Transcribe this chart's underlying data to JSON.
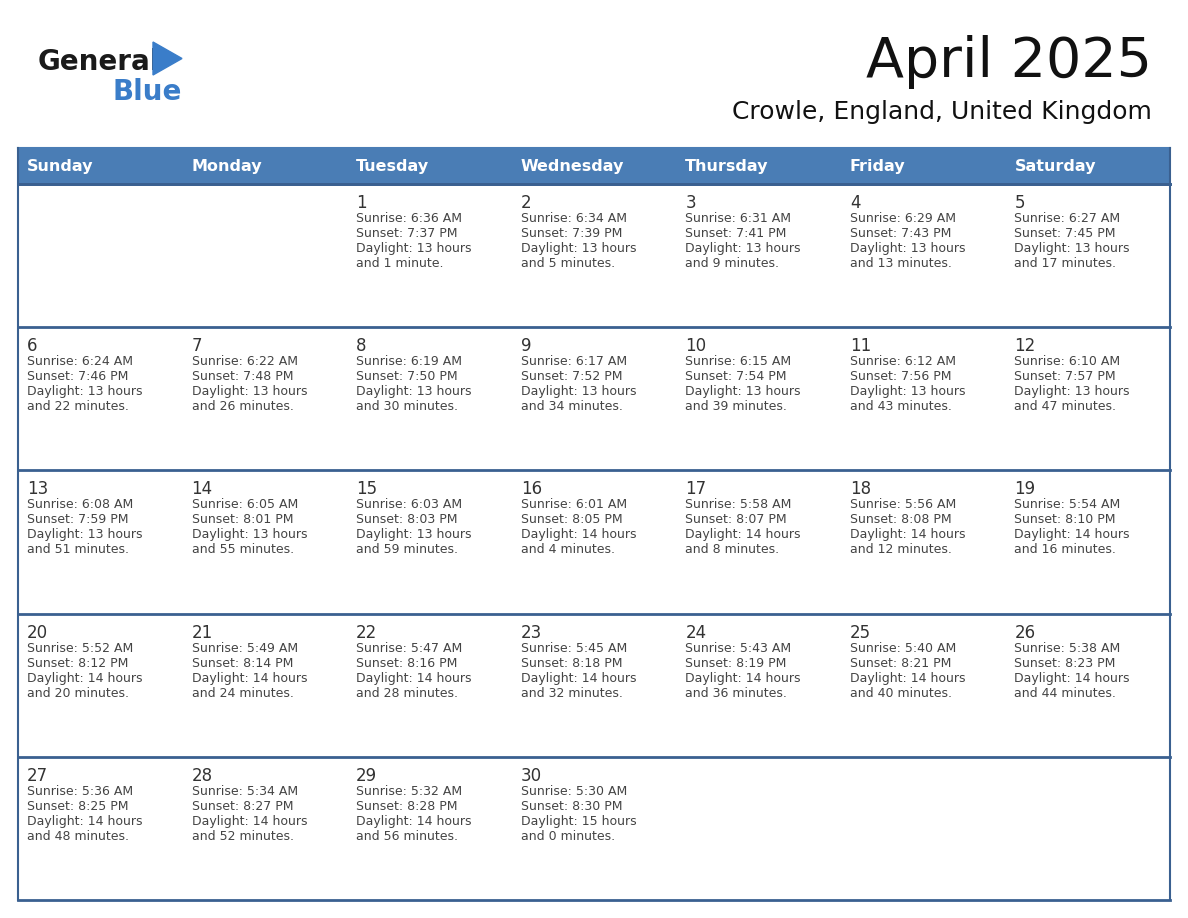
{
  "title": "April 2025",
  "subtitle": "Crowle, England, United Kingdom",
  "header_bg_color": "#4A7DB5",
  "header_text_color": "#FFFFFF",
  "days_of_week": [
    "Sunday",
    "Monday",
    "Tuesday",
    "Wednesday",
    "Thursday",
    "Friday",
    "Saturday"
  ],
  "cell_bg_color": "#FFFFFF",
  "row_sep_color": "#3A6090",
  "text_color": "#444444",
  "day_num_color": "#333333",
  "logo_general_color": "#1a1a1a",
  "logo_blue_color": "#3A7DC9",
  "calendar": [
    [
      {
        "day": "",
        "sunrise": "",
        "sunset": "",
        "daylight": ""
      },
      {
        "day": "",
        "sunrise": "",
        "sunset": "",
        "daylight": ""
      },
      {
        "day": "1",
        "sunrise": "6:36 AM",
        "sunset": "7:37 PM",
        "daylight": "13 hours and 1 minute."
      },
      {
        "day": "2",
        "sunrise": "6:34 AM",
        "sunset": "7:39 PM",
        "daylight": "13 hours and 5 minutes."
      },
      {
        "day": "3",
        "sunrise": "6:31 AM",
        "sunset": "7:41 PM",
        "daylight": "13 hours and 9 minutes."
      },
      {
        "day": "4",
        "sunrise": "6:29 AM",
        "sunset": "7:43 PM",
        "daylight": "13 hours and 13 minutes."
      },
      {
        "day": "5",
        "sunrise": "6:27 AM",
        "sunset": "7:45 PM",
        "daylight": "13 hours and 17 minutes."
      }
    ],
    [
      {
        "day": "6",
        "sunrise": "6:24 AM",
        "sunset": "7:46 PM",
        "daylight": "13 hours and 22 minutes."
      },
      {
        "day": "7",
        "sunrise": "6:22 AM",
        "sunset": "7:48 PM",
        "daylight": "13 hours and 26 minutes."
      },
      {
        "day": "8",
        "sunrise": "6:19 AM",
        "sunset": "7:50 PM",
        "daylight": "13 hours and 30 minutes."
      },
      {
        "day": "9",
        "sunrise": "6:17 AM",
        "sunset": "7:52 PM",
        "daylight": "13 hours and 34 minutes."
      },
      {
        "day": "10",
        "sunrise": "6:15 AM",
        "sunset": "7:54 PM",
        "daylight": "13 hours and 39 minutes."
      },
      {
        "day": "11",
        "sunrise": "6:12 AM",
        "sunset": "7:56 PM",
        "daylight": "13 hours and 43 minutes."
      },
      {
        "day": "12",
        "sunrise": "6:10 AM",
        "sunset": "7:57 PM",
        "daylight": "13 hours and 47 minutes."
      }
    ],
    [
      {
        "day": "13",
        "sunrise": "6:08 AM",
        "sunset": "7:59 PM",
        "daylight": "13 hours and 51 minutes."
      },
      {
        "day": "14",
        "sunrise": "6:05 AM",
        "sunset": "8:01 PM",
        "daylight": "13 hours and 55 minutes."
      },
      {
        "day": "15",
        "sunrise": "6:03 AM",
        "sunset": "8:03 PM",
        "daylight": "13 hours and 59 minutes."
      },
      {
        "day": "16",
        "sunrise": "6:01 AM",
        "sunset": "8:05 PM",
        "daylight": "14 hours and 4 minutes."
      },
      {
        "day": "17",
        "sunrise": "5:58 AM",
        "sunset": "8:07 PM",
        "daylight": "14 hours and 8 minutes."
      },
      {
        "day": "18",
        "sunrise": "5:56 AM",
        "sunset": "8:08 PM",
        "daylight": "14 hours and 12 minutes."
      },
      {
        "day": "19",
        "sunrise": "5:54 AM",
        "sunset": "8:10 PM",
        "daylight": "14 hours and 16 minutes."
      }
    ],
    [
      {
        "day": "20",
        "sunrise": "5:52 AM",
        "sunset": "8:12 PM",
        "daylight": "14 hours and 20 minutes."
      },
      {
        "day": "21",
        "sunrise": "5:49 AM",
        "sunset": "8:14 PM",
        "daylight": "14 hours and 24 minutes."
      },
      {
        "day": "22",
        "sunrise": "5:47 AM",
        "sunset": "8:16 PM",
        "daylight": "14 hours and 28 minutes."
      },
      {
        "day": "23",
        "sunrise": "5:45 AM",
        "sunset": "8:18 PM",
        "daylight": "14 hours and 32 minutes."
      },
      {
        "day": "24",
        "sunrise": "5:43 AM",
        "sunset": "8:19 PM",
        "daylight": "14 hours and 36 minutes."
      },
      {
        "day": "25",
        "sunrise": "5:40 AM",
        "sunset": "8:21 PM",
        "daylight": "14 hours and 40 minutes."
      },
      {
        "day": "26",
        "sunrise": "5:38 AM",
        "sunset": "8:23 PM",
        "daylight": "14 hours and 44 minutes."
      }
    ],
    [
      {
        "day": "27",
        "sunrise": "5:36 AM",
        "sunset": "8:25 PM",
        "daylight": "14 hours and 48 minutes."
      },
      {
        "day": "28",
        "sunrise": "5:34 AM",
        "sunset": "8:27 PM",
        "daylight": "14 hours and 52 minutes."
      },
      {
        "day": "29",
        "sunrise": "5:32 AM",
        "sunset": "8:28 PM",
        "daylight": "14 hours and 56 minutes."
      },
      {
        "day": "30",
        "sunrise": "5:30 AM",
        "sunset": "8:30 PM",
        "daylight": "15 hours and 0 minutes."
      },
      {
        "day": "",
        "sunrise": "",
        "sunset": "",
        "daylight": ""
      },
      {
        "day": "",
        "sunrise": "",
        "sunset": "",
        "daylight": ""
      },
      {
        "day": "",
        "sunrise": "",
        "sunset": "",
        "daylight": ""
      }
    ]
  ],
  "fig_width": 11.88,
  "fig_height": 9.18,
  "dpi": 100
}
